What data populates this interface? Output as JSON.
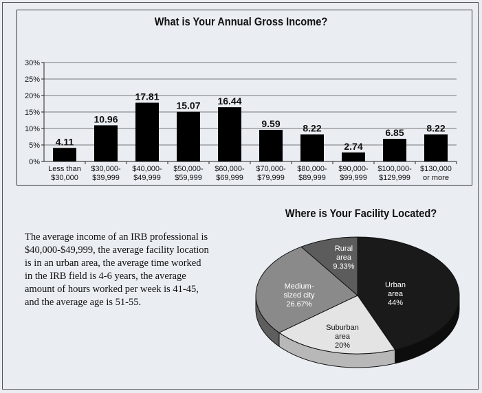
{
  "chart_data": [
    {
      "type": "bar",
      "title": "What is Your Annual Gross Income?",
      "categories": [
        [
          "Less than",
          "$30,000"
        ],
        [
          "$30,000-",
          "$39,999"
        ],
        [
          "$40,000-",
          "$49,999"
        ],
        [
          "$50,000-",
          "$59,999"
        ],
        [
          "$60,000-",
          "$69,999"
        ],
        [
          "$70,000-",
          "$79,999"
        ],
        [
          "$80,000-",
          "$89,999"
        ],
        [
          "$90,000-",
          "$99,999"
        ],
        [
          "$100,000-",
          "$129,999"
        ],
        [
          "$130,000",
          "or more"
        ]
      ],
      "values": [
        4.11,
        10.96,
        17.81,
        15.07,
        16.44,
        9.59,
        8.22,
        2.74,
        6.85,
        8.22
      ],
      "value_labels": [
        "4.11",
        "10.96",
        "17.81",
        "15.07",
        "16.44",
        "9.59",
        "8.22",
        "2.74",
        "6.85",
        "8.22"
      ],
      "ylim": [
        0,
        30
      ],
      "yticks": [
        "0%",
        "5%",
        "10%",
        "15%",
        "20%",
        "25%",
        "30%"
      ],
      "grid": true,
      "colors": {
        "bar": "#000000",
        "grid": "#777777",
        "panel": "#eaeef3"
      }
    },
    {
      "type": "pie",
      "title": "Where is Your Facility Located?",
      "slices": [
        {
          "label": [
            "Urban",
            "area",
            "44%"
          ],
          "value": 44,
          "color": "#1a1a1a",
          "text_color": "#ffffff"
        },
        {
          "label": [
            "Suburban",
            "area",
            "20%"
          ],
          "value": 20,
          "color": "#e4e4e4",
          "text_color": "#111111"
        },
        {
          "label": [
            "Medium-",
            "sized city",
            "26.67%"
          ],
          "value": 26.67,
          "color": "#8a8a8a",
          "text_color": "#ffffff"
        },
        {
          "label": [
            "Rural",
            "area",
            "9.33%"
          ],
          "value": 9.33,
          "color": "#5c5c5c",
          "text_color": "#ffffff"
        }
      ],
      "style": "3d"
    }
  ],
  "summary": {
    "text": "The average income of an IRB professional is $40,000-$49,999, the average facility location is in an urban area, the average time worked in the IRB field is 4-6 years, the average amount of hours worked per week is 41-45, and the average age is 51-55."
  }
}
